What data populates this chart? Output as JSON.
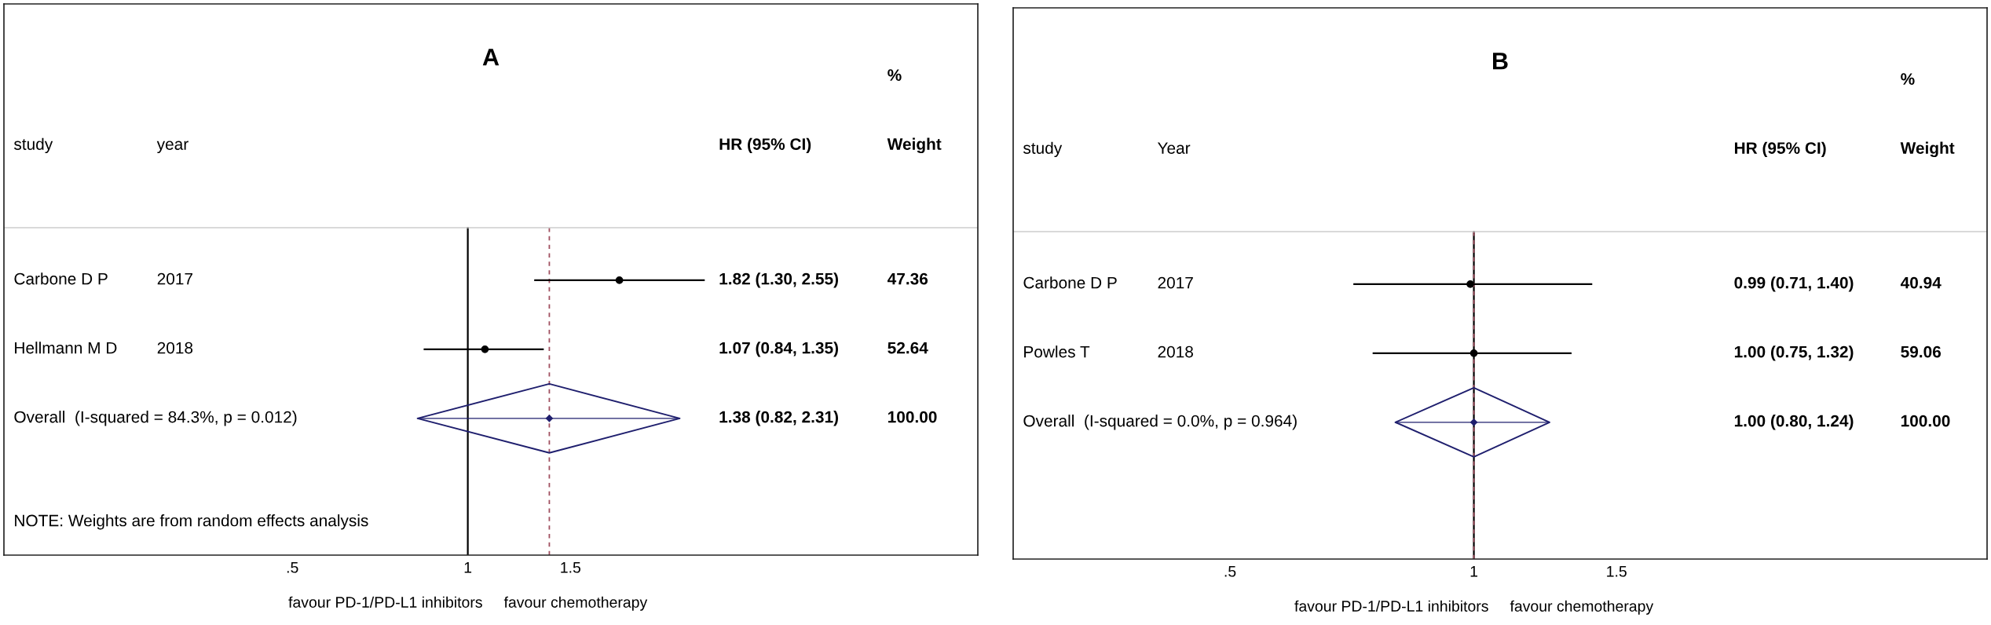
{
  "chart_data": [
    {
      "type": "scatter",
      "title": "A",
      "orientation": "horizontal",
      "log": "x",
      "grid": false,
      "legend": false,
      "tick_labels": "x",
      "categories": [
        "Carbone D P",
        "Hellmann M D",
        "Overall  (I-squared = 84.3%, p = 0.012)"
      ],
      "y2_categories": [
        "2017",
        "2018",
        null
      ],
      "value_labels": [
        "1.82 (1.30, 2.55)",
        "1.07 (0.84, 1.35)",
        "1.38 (0.82, 2.31)"
      ],
      "series": [
        {
          "marker": "circle",
          "color": "#000000",
          "values": [
            1.82,
            1.07,
            null
          ],
          "errors": [
            [
              1.3,
              2.55
            ],
            [
              0.84,
              1.35
            ],
            null
          ]
        },
        {
          "marker": "diamond",
          "color": "#1f1f6e",
          "values": [
            null,
            null,
            1.38
          ],
          "errors": [
            null,
            null,
            [
              0.82,
              2.31
            ]
          ]
        }
      ],
      "ref_lines": [
        {
          "axis": "x",
          "value": 1,
          "color": "#000000",
          "line_style": "solid"
        },
        {
          "axis": "x",
          "value": 1.38,
          "color": "#a05060",
          "line_style": "dashed"
        }
      ],
      "xlim": [
        0.16,
        7.5
      ],
      "xticks": [
        {
          "value": 0.5,
          "label": ".5"
        },
        1,
        1.5
      ],
      "xlabel": "favour PD-1/PD-L1 inhibitors     favour chemotherapy",
      "annotations": [
        "study",
        "year",
        "HR (95% CI)",
        "%",
        "Weight",
        "47.36",
        "52.64",
        "100.00",
        "NOTE: Weights are from random effects analysis"
      ]
    },
    {
      "type": "scatter",
      "title": "B",
      "orientation": "horizontal",
      "log": "x",
      "grid": false,
      "legend": false,
      "tick_labels": "x",
      "categories": [
        "Carbone D P",
        "Powles T",
        "Overall  (I-squared = 0.0%, p = 0.964)"
      ],
      "y2_categories": [
        "2017",
        "2018",
        null
      ],
      "value_labels": [
        "0.99 (0.71, 1.40)",
        "1.00 (0.75, 1.32)",
        "1.00 (0.80, 1.24)"
      ],
      "series": [
        {
          "marker": "circle",
          "color": "#000000",
          "values": [
            0.99,
            1.0,
            null
          ],
          "errors": [
            [
              0.71,
              1.4
            ],
            [
              0.75,
              1.32
            ],
            null
          ]
        },
        {
          "marker": "diamond",
          "color": "#1f1f6e",
          "values": [
            null,
            null,
            1.0
          ],
          "errors": [
            null,
            null,
            [
              0.8,
              1.24
            ]
          ]
        }
      ],
      "ref_lines": [
        {
          "axis": "x",
          "value": 1,
          "color": "#000000",
          "line_style": "solid"
        },
        {
          "axis": "x",
          "value": 1.0,
          "color": "#a05060",
          "line_style": "dashed"
        }
      ],
      "xlim": [
        0.27,
        4.3
      ],
      "xticks": [
        {
          "value": 0.5,
          "label": ".5"
        },
        1,
        1.5
      ],
      "xlabel": "favour PD-1/PD-L1 inhibitors     favour chemotherapy",
      "annotations": [
        "study",
        "Year",
        "HR (95% CI)",
        "%",
        "Weight",
        "40.94",
        "59.06",
        "100.00"
      ]
    }
  ]
}
